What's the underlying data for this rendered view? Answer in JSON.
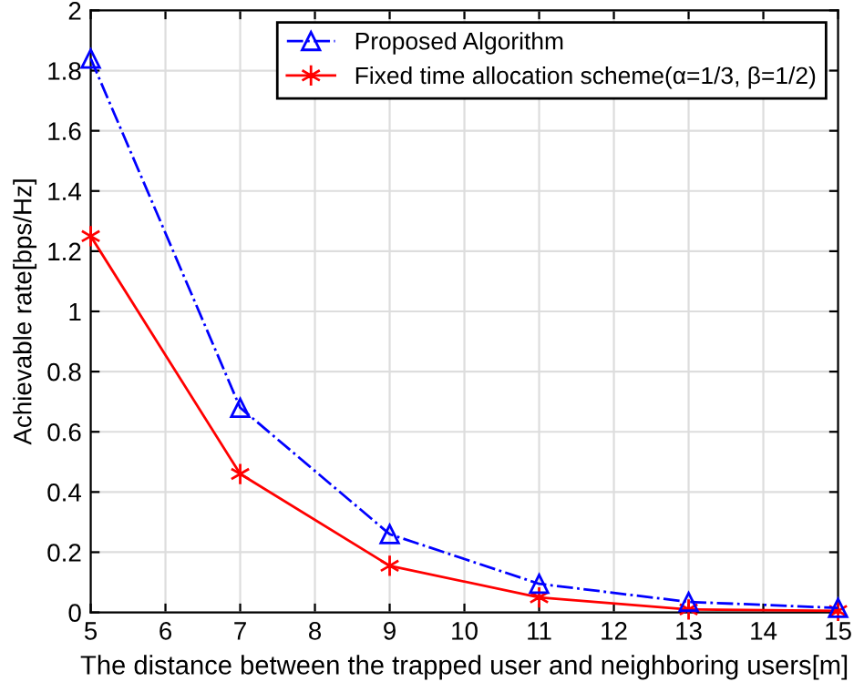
{
  "chart_data": {
    "type": "line",
    "xlabel": "The distance between the trapped user and neighboring users[m]",
    "ylabel": "Achievable rate[bps/Hz]",
    "x": [
      5,
      7,
      9,
      11,
      13,
      15
    ],
    "series": [
      {
        "name": "Proposed Algorithm",
        "color": "#0000ff",
        "marker": "triangle",
        "line_style": "dashdot",
        "values": [
          1.84,
          0.68,
          0.26,
          0.095,
          0.035,
          0.015
        ]
      },
      {
        "name": "Fixed time allocation scheme(α=1/3, β=1/2)",
        "color": "#ff0000",
        "marker": "cross",
        "line_style": "solid",
        "values": [
          1.25,
          0.46,
          0.155,
          0.05,
          0.01,
          0.005
        ]
      }
    ],
    "xlim": [
      5,
      15
    ],
    "xticks": [
      5,
      6,
      7,
      8,
      9,
      10,
      11,
      12,
      13,
      14,
      15
    ],
    "ylim": [
      0,
      2
    ],
    "yticks": [
      0,
      0.2,
      0.4,
      0.6,
      0.8,
      1,
      1.2,
      1.4,
      1.6,
      1.8,
      2
    ],
    "grid": true,
    "legend": "top right"
  }
}
